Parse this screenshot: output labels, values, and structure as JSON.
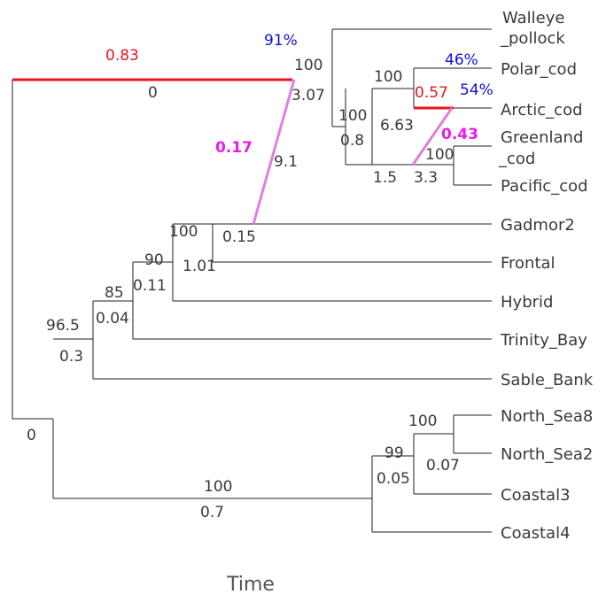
{
  "xlabel": "Time",
  "colors": {
    "branch": "#222222",
    "text": "#3a3a3a",
    "red": "#e8141c",
    "blue": "#1010d8",
    "magenta": "#e81ce8",
    "violet": "#e07ee0"
  },
  "leaves": [
    {
      "id": "walleye",
      "line1": "Walleye",
      "line2": "_pollock"
    },
    {
      "id": "polar",
      "line1": "Polar_cod"
    },
    {
      "id": "arctic",
      "line1": "Arctic_cod"
    },
    {
      "id": "greenland",
      "line1": "Greenland",
      "line2": "_cod"
    },
    {
      "id": "pacific",
      "line1": "Pacific_cod"
    },
    {
      "id": "gadmor2",
      "line1": "Gadmor2"
    },
    {
      "id": "frontal",
      "line1": "Frontal"
    },
    {
      "id": "hybrid",
      "line1": "Hybrid"
    },
    {
      "id": "trinity",
      "line1": "Trinity_Bay"
    },
    {
      "id": "sable",
      "line1": "Sable_Bank"
    },
    {
      "id": "northsea8",
      "line1": "North_Sea8"
    },
    {
      "id": "northsea2",
      "line1": "North_Sea2"
    },
    {
      "id": "coastal3",
      "line1": "Coastal3"
    },
    {
      "id": "coastal4",
      "line1": "Coastal4"
    }
  ],
  "node_labels": [
    {
      "id": "root",
      "text": "0"
    },
    {
      "id": "outgroup-support",
      "text": "100"
    },
    {
      "id": "outgroup-length",
      "text": "3.07"
    },
    {
      "id": "cod-clade-support",
      "text": "100"
    },
    {
      "id": "cod-clade-length",
      "text": "0.8"
    },
    {
      "id": "polar-arctic-support",
      "text": "100"
    },
    {
      "id": "polar-arctic-length",
      "text": "6.63"
    },
    {
      "id": "greenland-pacific-support",
      "text": "100"
    },
    {
      "id": "greenland-pacific-length-a",
      "text": "1.5"
    },
    {
      "id": "greenland-pacific-length-b",
      "text": "3.3"
    },
    {
      "id": "atlantic-support",
      "text": "96.5"
    },
    {
      "id": "atlantic-length",
      "text": "0.3"
    },
    {
      "id": "trinity-node-support",
      "text": "85"
    },
    {
      "id": "trinity-node-length",
      "text": "0.04"
    },
    {
      "id": "hybrid-node-support",
      "text": "90"
    },
    {
      "id": "hybrid-node-length",
      "text": "0.11"
    },
    {
      "id": "frontal-node-support",
      "text": "100"
    },
    {
      "id": "frontal-node-length",
      "text": "1.01"
    },
    {
      "id": "gadmor2-node-length",
      "text": "0.15"
    },
    {
      "id": "migration-length",
      "text": "9.1"
    },
    {
      "id": "northsea-support",
      "text": "100"
    },
    {
      "id": "northsea-length",
      "text": "0.07"
    },
    {
      "id": "coastal3-node-support",
      "text": "99"
    },
    {
      "id": "coastal3-node-length",
      "text": "0.05"
    },
    {
      "id": "east-support",
      "text": "100"
    },
    {
      "id": "east-length",
      "text": "0.7"
    },
    {
      "id": "root-branch-length",
      "text": "0"
    }
  ],
  "migrations": [
    {
      "id": "migration-root",
      "weight": "0.83",
      "length": "0"
    },
    {
      "id": "migration-atlantic",
      "weight": "0.17"
    },
    {
      "id": "migration-arctic",
      "weight": "0.57"
    },
    {
      "id": "migration-greenland",
      "weight": "0.43"
    }
  ],
  "percentages": [
    {
      "id": "walleye-pct",
      "text": "91%"
    },
    {
      "id": "polar-pct",
      "text": "46%"
    },
    {
      "id": "arctic-pct",
      "text": "54%"
    }
  ]
}
